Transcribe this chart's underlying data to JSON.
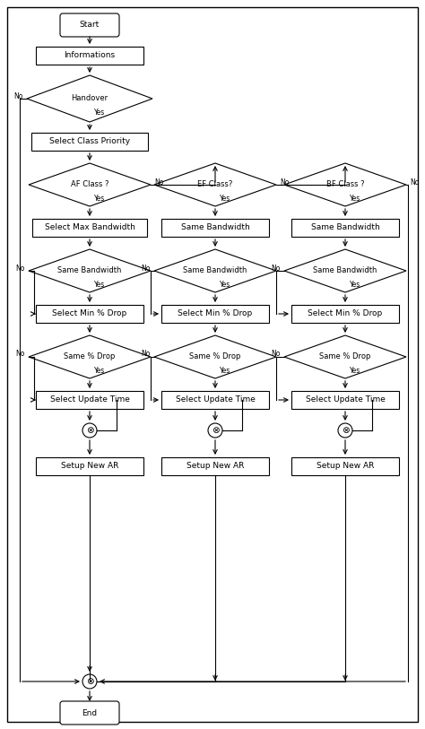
{
  "bg_color": "#ffffff",
  "box_edge": "#000000",
  "text_color": "#000000",
  "font_size": 6.5,
  "c1": 0.21,
  "c2": 0.51,
  "c3": 0.81,
  "nodes": {
    "start": {
      "label": "Start"
    },
    "info": {
      "label": "Informations"
    },
    "handover": {
      "label": "Handover"
    },
    "sel_class": {
      "label": "Select Class Priority"
    },
    "af_class": {
      "label": "AF Class ?"
    },
    "sel_max_bw": {
      "label": "Select Max Bandwidth"
    },
    "same_bw_af": {
      "label": "Same Bandwidth"
    },
    "sel_min_drop_af": {
      "label": "Select Min % Drop"
    },
    "same_drop_af": {
      "label": "Same % Drop"
    },
    "sel_upd_af": {
      "label": "Select Update Time"
    },
    "setup_af": {
      "label": "Setup New AR"
    },
    "ef_class": {
      "label": "EF Class?"
    },
    "same_bw_ef0": {
      "label": "Same Bandwidth"
    },
    "same_bw_ef": {
      "label": "Same Bandwidth"
    },
    "sel_min_drop_ef": {
      "label": "Select Min % Drop"
    },
    "same_drop_ef": {
      "label": "Same % Drop"
    },
    "sel_upd_ef": {
      "label": "Select Update Time"
    },
    "setup_ef": {
      "label": "Setup New AR"
    },
    "bf_class": {
      "label": "BF Class ?"
    },
    "same_bw_bf0": {
      "label": "Same Bandwidth"
    },
    "same_bw_bf": {
      "label": "Same Bandwidth"
    },
    "sel_min_drop_bf": {
      "label": "Select Min % Drop"
    },
    "same_drop_bf": {
      "label": "Same % Drop"
    },
    "sel_upd_bf": {
      "label": "Select Update Time"
    },
    "setup_bf": {
      "label": "Setup New AR"
    },
    "end": {
      "label": "End"
    }
  }
}
